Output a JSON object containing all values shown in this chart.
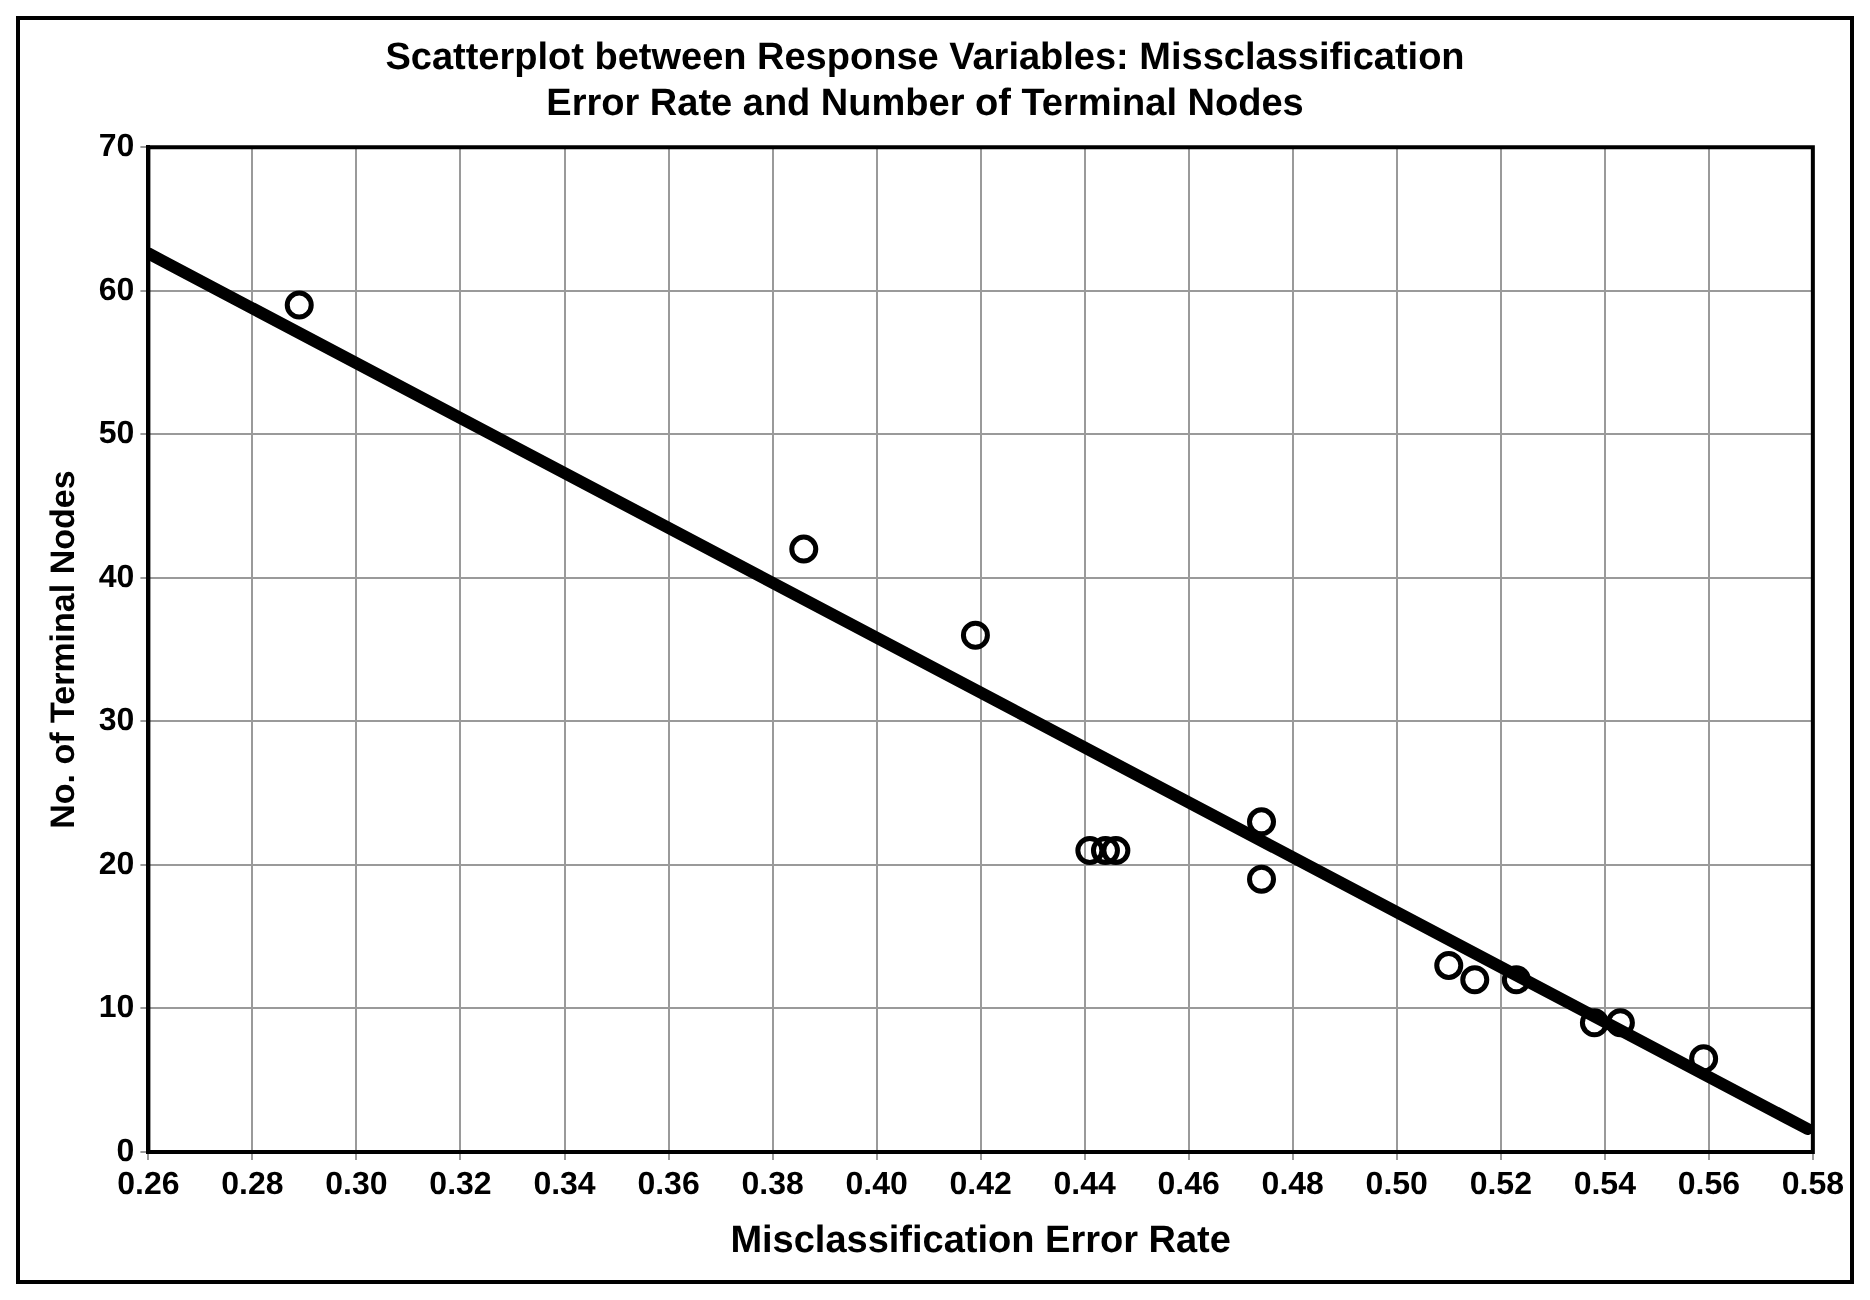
{
  "chart_data": {
    "type": "scatter",
    "title": "Scatterplot between Response Variables: Missclassification Error Rate and Number of Terminal Nodes",
    "xlabel": "Misclassification Error Rate",
    "ylabel": "No. of Terminal Nodes",
    "xlim": [
      0.26,
      0.58
    ],
    "ylim": [
      0,
      70
    ],
    "xticks": [
      {
        "value": 0.26,
        "label": "0.26"
      },
      {
        "value": 0.28,
        "label": "0.28"
      },
      {
        "value": 0.3,
        "label": "0.30"
      },
      {
        "value": 0.32,
        "label": "0.32"
      },
      {
        "value": 0.34,
        "label": "0.34"
      },
      {
        "value": 0.36,
        "label": "0.36"
      },
      {
        "value": 0.38,
        "label": "0.38"
      },
      {
        "value": 0.4,
        "label": "0.40"
      },
      {
        "value": 0.42,
        "label": "0.42"
      },
      {
        "value": 0.44,
        "label": "0.44"
      },
      {
        "value": 0.46,
        "label": "0.46"
      },
      {
        "value": 0.48,
        "label": "0.48"
      },
      {
        "value": 0.5,
        "label": "0.50"
      },
      {
        "value": 0.52,
        "label": "0.52"
      },
      {
        "value": 0.54,
        "label": "0.54"
      },
      {
        "value": 0.56,
        "label": "0.56"
      },
      {
        "value": 0.58,
        "label": "0.58"
      }
    ],
    "yticks": [
      0,
      10,
      20,
      30,
      40,
      50,
      60,
      70
    ],
    "grid": true,
    "legend": false,
    "marker": "circle",
    "series": [
      {
        "type": "scatter",
        "color": "#000000",
        "x": [
          0.289,
          0.386,
          0.419,
          0.441,
          0.444,
          0.446,
          0.474,
          0.474,
          0.51,
          0.515,
          0.523,
          0.538,
          0.543,
          0.559
        ],
        "values": [
          59,
          42,
          36,
          21,
          21,
          21,
          23,
          19,
          13,
          12,
          12,
          9,
          9,
          6.5
        ]
      },
      {
        "type": "line",
        "marker": "none",
        "color": "#000000",
        "x": [
          0.26,
          0.579
        ],
        "values": [
          62.6,
          1.6
        ]
      }
    ]
  }
}
